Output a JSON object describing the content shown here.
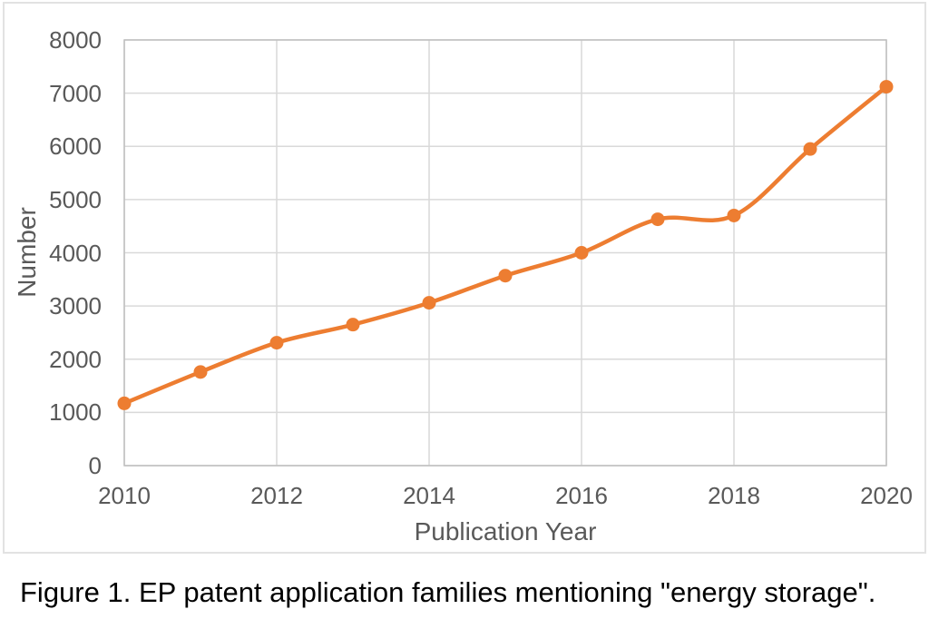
{
  "chart_data": {
    "type": "line",
    "title": "",
    "xlabel": "Publication Year",
    "ylabel": "Number",
    "xlim": [
      2010,
      2020
    ],
    "ylim": [
      0,
      8000
    ],
    "x_ticks": [
      2010,
      2012,
      2014,
      2016,
      2018,
      2020
    ],
    "y_ticks": [
      0,
      1000,
      2000,
      3000,
      4000,
      5000,
      6000,
      7000,
      8000
    ],
    "grid": true,
    "legend": "none",
    "line_style": "smooth",
    "marker": "circle",
    "series": [
      {
        "name": "EP patent application families",
        "color": "#ED7D31",
        "x": [
          2010,
          2011,
          2012,
          2013,
          2014,
          2015,
          2016,
          2017,
          2018,
          2019,
          2020
        ],
        "values": [
          1170,
          1760,
          2310,
          2650,
          3060,
          3570,
          4000,
          4630,
          4700,
          5950,
          7120
        ]
      }
    ]
  },
  "caption": {
    "text": "Figure 1. EP patent application families mentioning \"energy storage\"."
  },
  "colors": {
    "line": "#ED7D31",
    "label_gray": "#595959",
    "gridline": "#D9D9D9",
    "axis": "#BFBFBF",
    "frame": "#E2E2E2",
    "caption_text": "#000000"
  }
}
